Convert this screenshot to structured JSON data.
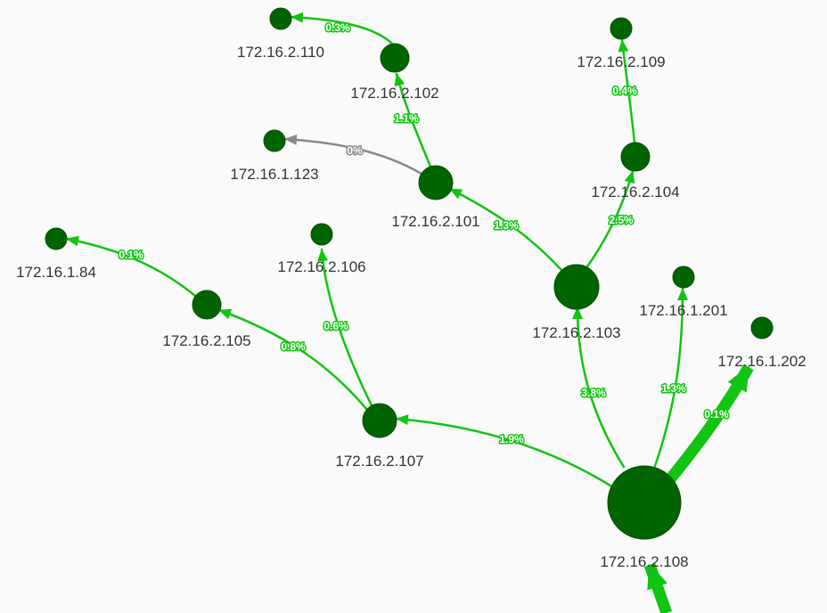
{
  "colors": {
    "node_fill": "#006400",
    "node_stroke": "#004d00",
    "edge_active": "#11c411",
    "edge_idle": "#8a8a8a",
    "background": "#fafafa",
    "label_text": "#333333"
  },
  "nodes": [
    {
      "id": "n108",
      "label": "172.16.2.108"
    },
    {
      "id": "n107",
      "label": "172.16.2.107"
    },
    {
      "id": "n105",
      "label": "172.16.2.105"
    },
    {
      "id": "n84",
      "label": "172.16.1.84"
    },
    {
      "id": "n106",
      "label": "172.16.2.106"
    },
    {
      "id": "n103",
      "label": "172.16.2.103"
    },
    {
      "id": "n101",
      "label": "172.16.2.101"
    },
    {
      "id": "n123",
      "label": "172.16.1.123"
    },
    {
      "id": "n102",
      "label": "172.16.2.102"
    },
    {
      "id": "n110",
      "label": "172.16.2.110"
    },
    {
      "id": "n104",
      "label": "172.16.2.104"
    },
    {
      "id": "n109",
      "label": "172.16.2.109"
    },
    {
      "id": "n201",
      "label": "172.16.1.201"
    },
    {
      "id": "n202",
      "label": "172.16.1.202"
    }
  ],
  "edges": [
    {
      "id": "e-in",
      "from": null,
      "to": "n108",
      "label": "",
      "status": "active",
      "weight": "heavy"
    },
    {
      "id": "e108-202",
      "from": "n108",
      "to": "n202",
      "label": "0.1%",
      "status": "active",
      "weight": "heavy"
    },
    {
      "id": "e108-107",
      "from": "n108",
      "to": "n107",
      "label": "1.9%",
      "status": "active",
      "weight": "light"
    },
    {
      "id": "e107-105",
      "from": "n107",
      "to": "n105",
      "label": "0.8%",
      "status": "active",
      "weight": "light"
    },
    {
      "id": "e105-84",
      "from": "n105",
      "to": "n84",
      "label": "0.1%",
      "status": "active",
      "weight": "light"
    },
    {
      "id": "e107-106",
      "from": "n107",
      "to": "n106",
      "label": "0.6%",
      "status": "active",
      "weight": "light"
    },
    {
      "id": "e108-103",
      "from": "n108",
      "to": "n103",
      "label": "3.8%",
      "status": "active",
      "weight": "light"
    },
    {
      "id": "e108-201",
      "from": "n108",
      "to": "n201",
      "label": "1.3%",
      "status": "active",
      "weight": "light"
    },
    {
      "id": "e103-101",
      "from": "n103",
      "to": "n101",
      "label": "1.3%",
      "status": "active",
      "weight": "light"
    },
    {
      "id": "e103-104",
      "from": "n103",
      "to": "n104",
      "label": "2.5%",
      "status": "active",
      "weight": "light"
    },
    {
      "id": "e104-109",
      "from": "n104",
      "to": "n109",
      "label": "0.4%",
      "status": "active",
      "weight": "light"
    },
    {
      "id": "e101-102",
      "from": "n101",
      "to": "n102",
      "label": "1.1%",
      "status": "active",
      "weight": "light"
    },
    {
      "id": "e102-110",
      "from": "n102",
      "to": "n110",
      "label": "0.3%",
      "status": "active",
      "weight": "light"
    },
    {
      "id": "e101-123",
      "from": "n101",
      "to": "n123",
      "label": "0%",
      "status": "idle",
      "weight": "light"
    }
  ]
}
